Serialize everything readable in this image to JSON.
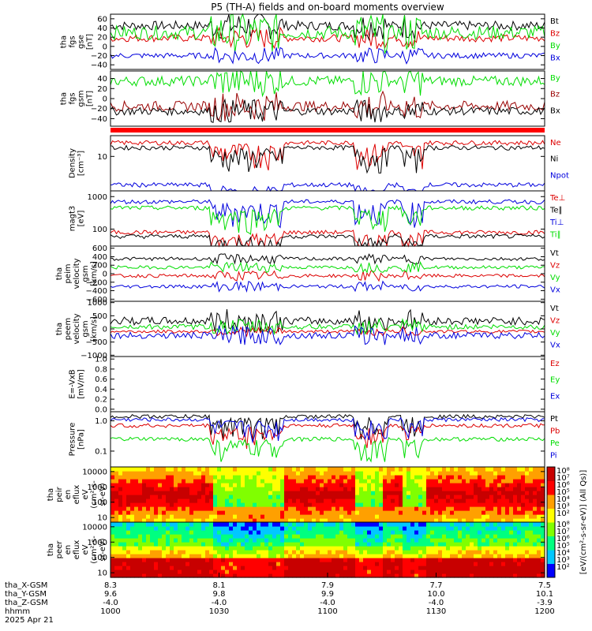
{
  "title": "P5 (TH-A) fields and on-board moments overview",
  "x_axis": {
    "time_ticks": [
      "1000",
      "1030",
      "1100",
      "1130",
      "1200"
    ],
    "ephemeris": [
      {
        "label": "tha_X-GSM",
        "values": [
          "8.3",
          "8.1",
          "7.9",
          "7.7",
          "7.5"
        ]
      },
      {
        "label": "tha_Y-GSM",
        "values": [
          "9.6",
          "9.8",
          "9.9",
          "10.0",
          "10.1"
        ]
      },
      {
        "label": "tha_Z-GSM",
        "values": [
          "-4.0",
          "-4.0",
          "-4.0",
          "-4.0",
          "-3.9"
        ]
      },
      {
        "label": "hhmm",
        "values": [
          "1000",
          "1030",
          "1100",
          "1130",
          "1200"
        ]
      }
    ],
    "date": "2025 Apr 21"
  },
  "colorbar": {
    "ticks": [
      "10⁸",
      "10⁷",
      "10⁶",
      "10⁵",
      "10⁴",
      "10³",
      "10²"
    ],
    "ticks2": [
      "10⁸",
      "10⁷",
      "10⁶",
      "10⁵",
      "10⁴",
      "10³",
      "10²"
    ],
    "label": "[eV/(cm²-s-sr-eV)] (All Qs)]",
    "colors": [
      "#0000ff",
      "#00c8ff",
      "#00ff80",
      "#80ff00",
      "#ffff00",
      "#ffa000",
      "#ff0000",
      "#c80000"
    ]
  },
  "chart_data": [
    {
      "type": "line",
      "id": "fgs_gse",
      "ylabel": [
        "tha",
        "fgs",
        "gse",
        "[nT]"
      ],
      "ylim": [
        -50,
        70
      ],
      "yticks": [
        "60",
        "40",
        "20",
        "0",
        "−20",
        "−40"
      ],
      "ytick_values": [
        60,
        40,
        20,
        0,
        -20,
        -40
      ],
      "series": [
        {
          "name": "Bt",
          "color": "#000000",
          "base": 45,
          "var": 10
        },
        {
          "name": "Bz",
          "color": "#dd0000",
          "base": 18,
          "var": 8
        },
        {
          "name": "By",
          "color": "#00dd00",
          "base": 30,
          "var": 15
        },
        {
          "name": "Bx",
          "color": "#0000dd",
          "base": -20,
          "var": 6
        }
      ]
    },
    {
      "type": "line",
      "id": "fgs_gsm",
      "ylabel": [
        "tha",
        "fgs",
        "gsm",
        "[nT]"
      ],
      "ylim": [
        -55,
        55
      ],
      "yticks": [
        "40",
        "20",
        "0",
        "−20",
        "−40"
      ],
      "ytick_values": [
        40,
        20,
        0,
        -20,
        -40
      ],
      "series": [
        {
          "name": "By",
          "color": "#00dd00",
          "base": 35,
          "var": 10
        },
        {
          "name": "Bz",
          "color": "#990000",
          "base": -15,
          "var": 10
        },
        {
          "name": "Bx",
          "color": "#000000",
          "base": -25,
          "var": 8
        }
      ]
    },
    {
      "type": "line",
      "id": "density",
      "ylabel": [
        "Density",
        "[cm⁻³]"
      ],
      "ylim": [
        1,
        40
      ],
      "yticks": [
        "10"
      ],
      "ytick_values": [
        10
      ],
      "series": [
        {
          "name": "Ne",
          "color": "#dd0000",
          "base": 25,
          "var": 3
        },
        {
          "name": "Ni",
          "color": "#000000",
          "base": 18,
          "var": 3
        },
        {
          "name": "Npot",
          "color": "#0000dd",
          "base": 1.5,
          "var": 0.3
        }
      ]
    },
    {
      "type": "line",
      "id": "temp",
      "ylabel": [
        "magt3",
        "[eV]"
      ],
      "ylim": [
        30,
        1500
      ],
      "yticks": [
        "1000",
        "100"
      ],
      "ytick_values": [
        1000,
        100
      ],
      "series": [
        {
          "name": "Te⊥",
          "color": "#dd0000",
          "base": 80,
          "var": 10
        },
        {
          "name": "Te∥",
          "color": "#000000",
          "base": 60,
          "var": 10
        },
        {
          "name": "Ti⊥",
          "color": "#0000dd",
          "base": 700,
          "var": 80
        },
        {
          "name": "Ti∥",
          "color": "#00dd00",
          "base": 450,
          "var": 60
        }
      ]
    },
    {
      "type": "line",
      "id": "peim",
      "ylabel": [
        "tha",
        "peim",
        "velocity",
        "gsm",
        "[km/s]"
      ],
      "ylim": [
        -650,
        650
      ],
      "yticks": [
        "600",
        "400",
        "200",
        "0",
        "−200",
        "−400",
        "−600"
      ],
      "ytick_values": [
        600,
        400,
        200,
        0,
        -200,
        -400,
        -600
      ],
      "series": [
        {
          "name": "Vt",
          "color": "#000000",
          "base": 350,
          "var": 40
        },
        {
          "name": "Vz",
          "color": "#dd0000",
          "base": -50,
          "var": 40
        },
        {
          "name": "Vy",
          "color": "#00dd00",
          "base": 150,
          "var": 40
        },
        {
          "name": "Vx",
          "color": "#0000dd",
          "base": -300,
          "var": 40
        }
      ]
    },
    {
      "type": "line",
      "id": "peem",
      "ylabel": [
        "tha",
        "peem",
        "velocity",
        "gsm",
        "[km/s]"
      ],
      "ylim": [
        -1050,
        1050
      ],
      "yticks": [
        "1000",
        "500",
        "0",
        "−500",
        "−1000"
      ],
      "ytick_values": [
        1000,
        500,
        0,
        -500,
        -1000
      ],
      "series": [
        {
          "name": "Vt",
          "color": "#000000",
          "base": 300,
          "var": 150
        },
        {
          "name": "Vz",
          "color": "#dd0000",
          "base": -100,
          "var": 60
        },
        {
          "name": "Vy",
          "color": "#00dd00",
          "base": 80,
          "var": 100
        },
        {
          "name": "Vx",
          "color": "#0000dd",
          "base": -250,
          "var": 120
        }
      ]
    },
    {
      "type": "line",
      "id": "efield",
      "ylabel": [
        "E=-VxB",
        "[mV/m]"
      ],
      "ylim": [
        -0.05,
        1.05
      ],
      "yticks": [
        "1.0",
        "0.8",
        "0.6",
        "0.4",
        "0.2",
        "0.0"
      ],
      "ytick_values": [
        1.0,
        0.8,
        0.6,
        0.4,
        0.2,
        0.0
      ],
      "series": [
        {
          "name": "Ez",
          "color": "#dd0000",
          "empty": true
        },
        {
          "name": "Ey",
          "color": "#00dd00",
          "empty": true
        },
        {
          "name": "Ex",
          "color": "#0000dd",
          "empty": true
        }
      ]
    },
    {
      "type": "line",
      "id": "pressure",
      "ylabel": [
        "Pressure",
        "[nPa]"
      ],
      "ylim": [
        0.03,
        2
      ],
      "yticks": [
        "1.0",
        "0.1"
      ],
      "ytick_values": [
        1.0,
        0.1
      ],
      "series": [
        {
          "name": "Pt",
          "color": "#000000",
          "base": 1.4,
          "var": 0.1
        },
        {
          "name": "Pb",
          "color": "#dd0000",
          "base": 0.7,
          "var": 0.1
        },
        {
          "name": "Pe",
          "color": "#00dd00",
          "base": 0.25,
          "var": 0.05
        },
        {
          "name": "Pi",
          "color": "#0000dd",
          "base": 1.1,
          "var": 0.1
        }
      ]
    },
    {
      "type": "heatmap",
      "id": "peir",
      "ylabel": [
        "tha",
        "peir",
        "en",
        "eflux",
        "eV",
        "(cm²-s-",
        "sr-eV)"
      ],
      "ylim": [
        5,
        20000
      ],
      "yticks": [
        "10000",
        "1000",
        "100",
        "10"
      ],
      "ytick_values": [
        10000,
        1000,
        100,
        10
      ]
    },
    {
      "type": "heatmap",
      "id": "peer",
      "ylabel": [
        "tha",
        "peer",
        "en",
        "eflux",
        "eV",
        "(cm²-s-",
        "sr-eV)"
      ],
      "ylim": [
        5,
        20000
      ],
      "yticks": [
        "10000",
        "1000",
        "100",
        "10"
      ],
      "ytick_values": [
        10000,
        1000,
        100,
        10
      ]
    }
  ]
}
